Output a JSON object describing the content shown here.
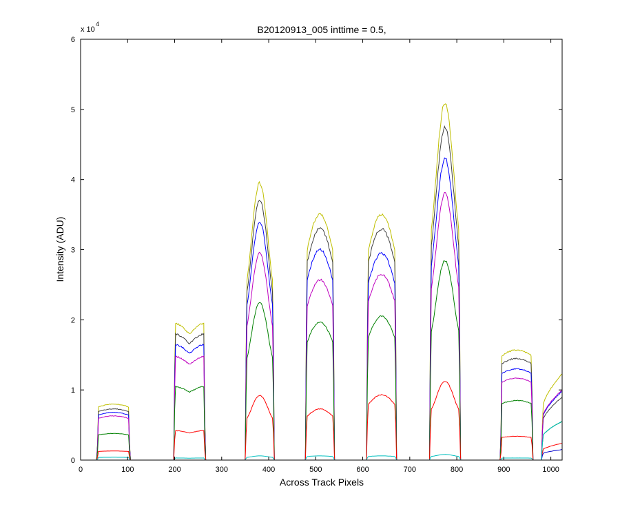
{
  "chart_data": {
    "type": "line",
    "title": "B20120913_005 inttime = 0.5,",
    "xlabel": "Across Track Pixels",
    "ylabel": "Intensity (ADU)",
    "y_multiplier_base": "x 10",
    "y_multiplier_exponent": "4",
    "xlim": [
      0,
      1024
    ],
    "ylim": [
      0,
      60000
    ],
    "x_ticks": [
      0,
      100,
      200,
      300,
      400,
      500,
      600,
      700,
      800,
      900,
      1000
    ],
    "y_ticks": [
      0,
      10000,
      20000,
      30000,
      40000,
      50000,
      60000
    ],
    "x_tick_labels": [
      "0",
      "100",
      "200",
      "300",
      "400",
      "500",
      "600",
      "700",
      "800",
      "900",
      "1000"
    ],
    "y_tick_labels": [
      "0",
      "1",
      "2",
      "3",
      "4",
      "5",
      "6"
    ],
    "grid": false,
    "legend": "none",
    "segments": [
      {
        "start": 35,
        "end": 105,
        "shape": "flat"
      },
      {
        "start": 198,
        "end": 265,
        "shape": "twin"
      },
      {
        "start": 350,
        "end": 412,
        "shape": "peak"
      },
      {
        "start": 478,
        "end": 540,
        "shape": "round"
      },
      {
        "start": 608,
        "end": 672,
        "shape": "round"
      },
      {
        "start": 742,
        "end": 808,
        "shape": "peak"
      },
      {
        "start": 893,
        "end": 962,
        "shape": "flat"
      },
      {
        "start": 980,
        "end": 1024,
        "shape": "rise"
      }
    ],
    "series": [
      {
        "color": "#bfbf00",
        "peaks": [
          8000,
          19500,
          39500,
          35000,
          35000,
          51000,
          15700,
          12300
        ]
      },
      {
        "color": "#404040",
        "peaks": [
          7300,
          18000,
          37000,
          33000,
          33000,
          47500,
          14500,
          9000
        ]
      },
      {
        "color": "#0000ff",
        "peaks": [
          6800,
          16500,
          34000,
          30000,
          29500,
          43000,
          13000,
          9800
        ]
      },
      {
        "color": "#bf00bf",
        "peaks": [
          6300,
          14800,
          29500,
          25700,
          26500,
          38000,
          11700,
          10000
        ]
      },
      {
        "color": "#008000",
        "peaks": [
          3800,
          10500,
          22500,
          19700,
          20500,
          28500,
          8500,
          5500
        ]
      },
      {
        "color": "#ff0000",
        "peaks": [
          1300,
          4200,
          9200,
          7300,
          9300,
          11200,
          3400,
          2400
        ]
      },
      {
        "color": "#0000cc",
        "peaks": [
          0,
          0,
          0,
          0,
          0,
          0,
          0,
          1500
        ]
      },
      {
        "color": "#00bfbf",
        "peaks": [
          400,
          300,
          600,
          600,
          600,
          800,
          300,
          5500
        ]
      }
    ]
  }
}
